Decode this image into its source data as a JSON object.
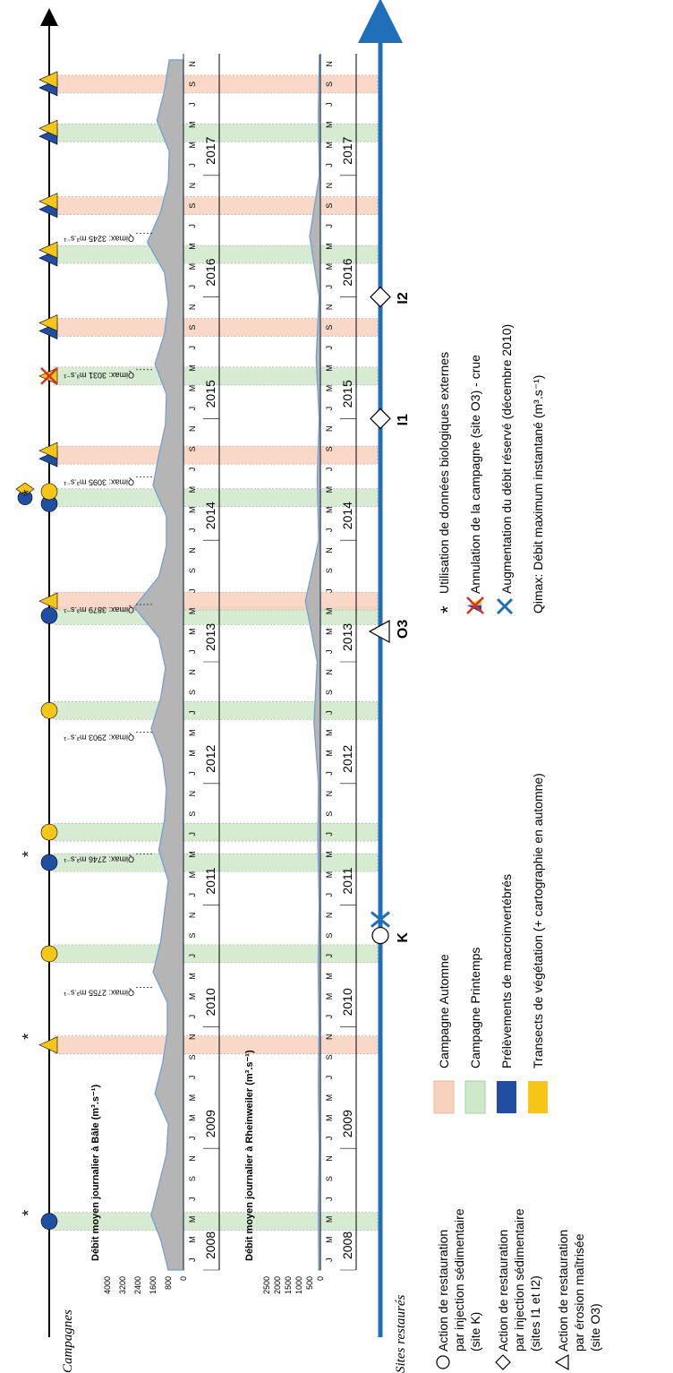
{
  "labels": {
    "campagnes": "Campagnes",
    "sites_restaures": "Sites restaurés"
  },
  "chart_data": [
    {
      "type": "area",
      "title": "Débit moyen journalier à Bâle (m³.s⁻¹)",
      "ylabel": "",
      "ylim": [
        0,
        4000
      ],
      "yticks": [
        "4000",
        "3200",
        "2400",
        "1600",
        "800",
        "0"
      ],
      "ytick_values": [
        4000,
        3200,
        2400,
        1600,
        800,
        0
      ],
      "series": [
        {
          "x": [
            2008.0,
            2008.25,
            2008.45,
            2008.7,
            2008.95,
            2009.2,
            2009.45,
            2009.7,
            2009.95,
            2010.2,
            2010.45,
            2010.7,
            2010.95,
            2011.2,
            2011.45,
            2011.7,
            2011.95,
            2012.2,
            2012.45,
            2012.7,
            2012.95,
            2013.2,
            2013.45,
            2013.7,
            2013.95,
            2014.2,
            2014.45,
            2014.7,
            2014.95,
            2015.2,
            2015.45,
            2015.7,
            2015.95,
            2016.2,
            2016.45,
            2016.7,
            2016.95,
            2017.2,
            2017.45,
            2017.7,
            2017.95
          ],
          "values": [
            800,
            1200,
            1700,
            1300,
            900,
            800,
            1500,
            1100,
            850,
            850,
            1600,
            1200,
            1000,
            800,
            1300,
            1000,
            900,
            1100,
            1700,
            1200,
            950,
            1300,
            2600,
            1300,
            900,
            900,
            1600,
            1300,
            950,
            900,
            1500,
            1000,
            800,
            1000,
            1900,
            1200,
            800,
            750,
            1400,
            1000,
            750
          ]
        }
      ],
      "annotations": [
        {
          "text": "Qimax: 2755 m³.s⁻¹",
          "x": 2010.3
        },
        {
          "text": "Qimax: 2746 m³.s⁻¹",
          "x": 2011.4
        },
        {
          "text": "Qimax: 2903 m³.s⁻¹",
          "x": 2012.4
        },
        {
          "text": "Qimax: 3879 m³.s⁻¹",
          "x": 2013.45
        },
        {
          "text": "Qimax: 3095 m³.s⁻¹",
          "x": 2014.5
        },
        {
          "text": "Qimax: 3031 m³.s⁻¹",
          "x": 2015.38
        },
        {
          "text": "Qimax: 3245 m³.s⁻¹",
          "x": 2016.5
        }
      ]
    },
    {
      "type": "area",
      "title": "Débit moyen journalier à Rheinweiler (m³.s⁻¹)",
      "ylabel": "",
      "ylim": [
        0,
        2500
      ],
      "yticks": [
        "2500",
        "2000",
        "1500",
        "1000",
        "500",
        "0"
      ],
      "ytick_values": [
        2500,
        2000,
        1500,
        1000,
        500,
        0
      ],
      "series": [
        {
          "x": [
            2008.0,
            2008.5,
            2009.0,
            2009.5,
            2010.0,
            2010.5,
            2011.0,
            2011.5,
            2012.0,
            2012.5,
            2013.0,
            2013.5,
            2014.0,
            2014.5,
            2015.0,
            2015.5,
            2016.0,
            2016.5,
            2017.0,
            2017.5,
            2017.99
          ],
          "values": [
            80,
            100,
            60,
            100,
            70,
            110,
            60,
            120,
            90,
            300,
            150,
            700,
            80,
            150,
            60,
            200,
            60,
            500,
            50,
            100,
            50
          ]
        }
      ]
    }
  ],
  "years": [
    "2008",
    "2009",
    "2010",
    "2011",
    "2012",
    "2013",
    "2014",
    "2015",
    "2016",
    "2017"
  ],
  "months": [
    "J",
    "M",
    "M",
    "J",
    "S",
    "N"
  ],
  "sites": [
    {
      "label": "K",
      "x": 2010.75
    },
    {
      "label": "O3",
      "x": 2013.25
    },
    {
      "label": "I1",
      "x": 2015.0
    },
    {
      "label": "I2",
      "x": 2016.0
    }
  ],
  "campaign_bands": [
    {
      "type": "printemps",
      "x": 2008.4
    },
    {
      "type": "automne",
      "x": 2009.85
    },
    {
      "type": "printemps",
      "x": 2010.6
    },
    {
      "type": "printemps",
      "x": 2011.35
    },
    {
      "type": "printemps",
      "x": 2011.6
    },
    {
      "type": "printemps",
      "x": 2012.6
    },
    {
      "type": "printemps",
      "x": 2013.38
    },
    {
      "type": "automne",
      "x": 2013.5
    },
    {
      "type": "printemps",
      "x": 2014.35
    },
    {
      "type": "automne",
      "x": 2014.7
    },
    {
      "type": "printemps",
      "x": 2015.35
    },
    {
      "type": "automne",
      "x": 2015.75
    },
    {
      "type": "printemps",
      "x": 2016.35
    },
    {
      "type": "automne",
      "x": 2016.75
    },
    {
      "type": "printemps",
      "x": 2017.35
    },
    {
      "type": "automne",
      "x": 2017.75
    }
  ],
  "legend": {
    "automne": "Campagne Automne",
    "printemps": "Campagne Printemps",
    "macro": "Prélèvements de macroinvertébrés",
    "vegetation": "Transects de végétation (+ cartographie en automne)",
    "circle_action": [
      "Action de restauration",
      "par injection sédimentaire",
      "(site K)"
    ],
    "diamond_action": [
      "Action de restauration",
      "par injection sédimentaire",
      "(sites I1 et I2)"
    ],
    "triangle_action": [
      "Action de restauration",
      "par érosion maîtrisée",
      "(site O3)"
    ],
    "externes": "Utilisation de données biologiques externes",
    "annulation": "Annulation de la campagne (site O3) - crue",
    "augmentation": "Augmentation du débit réservé (décembre 2010)",
    "qimax": "Qimax: Débit maximum instantané (m³.s⁻¹)"
  },
  "colors": {
    "automne": "#f9d2bf",
    "printemps": "#cfe8c9",
    "macro": "#1f4ea3",
    "vegetation": "#f5c518",
    "flow_line": "#6a9fd4",
    "flow_fill": "#b5b5b5",
    "timeline": "#1f6fb8",
    "cross": "#d7301f"
  }
}
